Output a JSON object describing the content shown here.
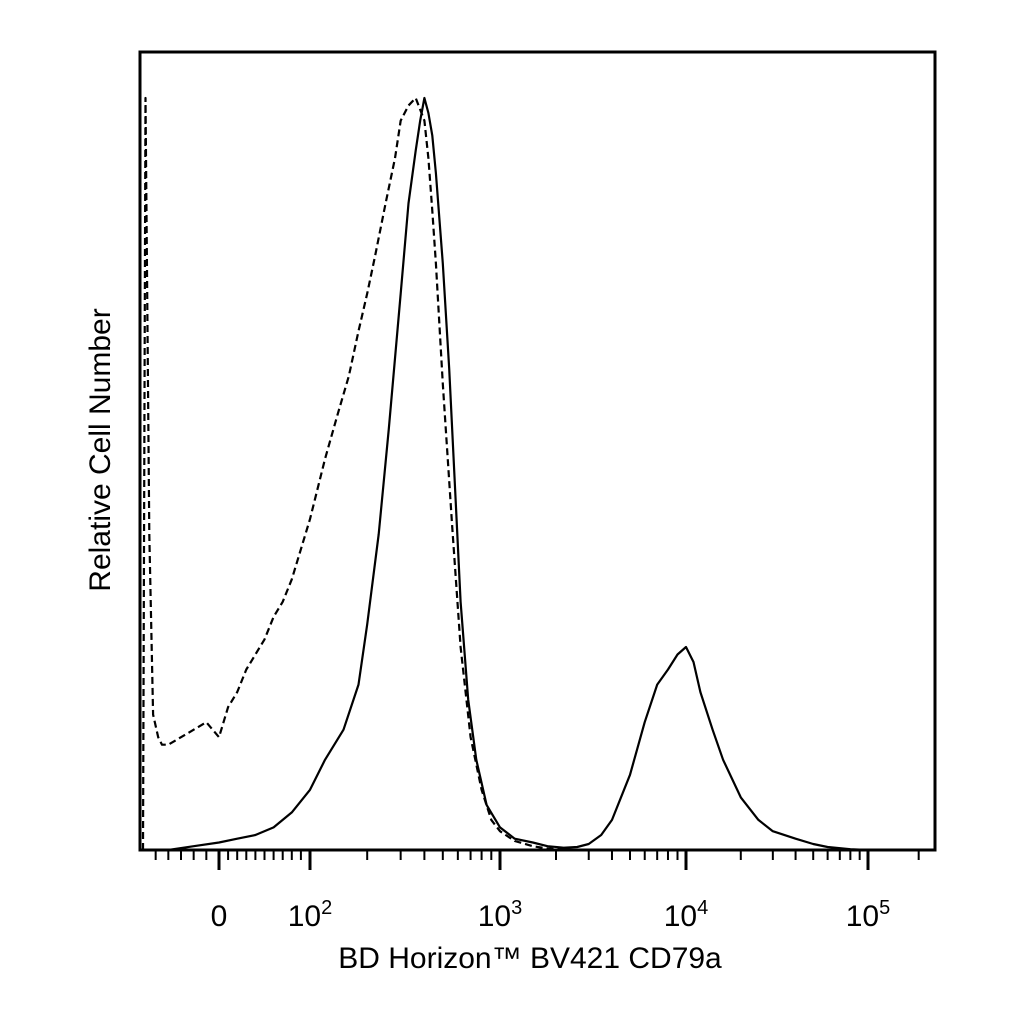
{
  "chart_data": {
    "type": "area",
    "title": "",
    "xlabel": "BD Horizon™ BV421 CD79a",
    "ylabel": "Relative Cell Number",
    "x_scale": "biexponential",
    "xlim": [
      -60,
      250000
    ],
    "ylim": [
      0,
      1.0
    ],
    "grid": false,
    "x_ticks": [
      {
        "value": 0,
        "base": "0",
        "exp": ""
      },
      {
        "value": 100,
        "base": "10",
        "exp": "2"
      },
      {
        "value": 1000,
        "base": "10",
        "exp": "3"
      },
      {
        "value": 10000,
        "base": "10",
        "exp": "4"
      },
      {
        "value": 100000,
        "base": "10",
        "exp": "5"
      }
    ],
    "series": [
      {
        "style": "dashed",
        "x": [
          -60,
          -58,
          -55,
          -52,
          -48,
          -45,
          -40,
          -30,
          -20,
          -10,
          0,
          10,
          20,
          30,
          40,
          50,
          60,
          70,
          80,
          90,
          100,
          120,
          140,
          160,
          180,
          200,
          220,
          250,
          280,
          300,
          330,
          360,
          400,
          420,
          440,
          460,
          500,
          560,
          620,
          700,
          800,
          900,
          1000,
          1200,
          1500,
          1800,
          2200,
          2800,
          3500,
          5000,
          8000,
          15000,
          30000,
          60000,
          100000,
          250000
        ],
        "y": [
          0,
          1.0,
          0.42,
          0.18,
          0.15,
          0.14,
          0.14,
          0.15,
          0.16,
          0.17,
          0.15,
          0.19,
          0.21,
          0.24,
          0.26,
          0.28,
          0.31,
          0.33,
          0.36,
          0.4,
          0.44,
          0.52,
          0.58,
          0.63,
          0.69,
          0.74,
          0.79,
          0.86,
          0.92,
          0.97,
          0.99,
          1.0,
          0.97,
          0.92,
          0.85,
          0.78,
          0.62,
          0.43,
          0.27,
          0.15,
          0.08,
          0.04,
          0.025,
          0.012,
          0.005,
          0.002,
          0.001,
          0,
          0,
          0,
          0,
          0,
          0,
          0,
          0,
          0
        ]
      },
      {
        "style": "solid",
        "x": [
          -60,
          -40,
          -20,
          0,
          20,
          40,
          60,
          80,
          100,
          120,
          150,
          180,
          200,
          230,
          260,
          300,
          330,
          360,
          380,
          400,
          420,
          440,
          460,
          500,
          540,
          580,
          620,
          680,
          750,
          850,
          1000,
          1200,
          1500,
          1800,
          2200,
          2600,
          3000,
          3500,
          4000,
          5000,
          6000,
          7000,
          8000,
          9000,
          10000,
          11000,
          12000,
          14000,
          16000,
          20000,
          25000,
          30000,
          40000,
          50000,
          60000,
          80000,
          100000,
          250000
        ],
        "y": [
          0,
          0,
          0.005,
          0.01,
          0.015,
          0.02,
          0.03,
          0.05,
          0.08,
          0.12,
          0.16,
          0.22,
          0.3,
          0.42,
          0.56,
          0.74,
          0.86,
          0.93,
          0.97,
          1.0,
          0.98,
          0.95,
          0.9,
          0.78,
          0.64,
          0.48,
          0.33,
          0.2,
          0.12,
          0.06,
          0.03,
          0.015,
          0.01,
          0.005,
          0.003,
          0.004,
          0.008,
          0.02,
          0.04,
          0.1,
          0.17,
          0.22,
          0.24,
          0.26,
          0.27,
          0.25,
          0.21,
          0.16,
          0.12,
          0.07,
          0.04,
          0.025,
          0.015,
          0.008,
          0.004,
          0.001,
          0,
          0
        ]
      }
    ]
  }
}
